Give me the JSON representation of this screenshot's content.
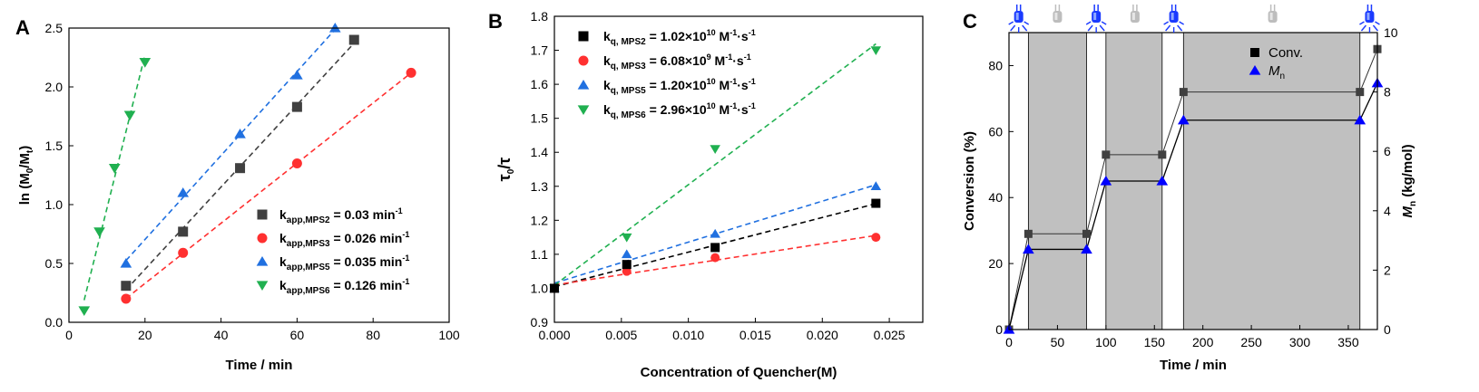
{
  "chart_data": [
    {
      "panel": "A",
      "type": "scatter",
      "xlabel": "Time / min",
      "ylabel": "ln (M0/Mt)",
      "xlim": [
        0,
        100
      ],
      "ylim": [
        0.0,
        2.5
      ],
      "xticks": [
        0,
        20,
        40,
        60,
        80,
        100
      ],
      "yticks": [
        0.0,
        0.5,
        1.0,
        1.5,
        2.0,
        2.5
      ],
      "legend": "bottom-right",
      "fit_lines": "dashed",
      "series": [
        {
          "name": "MPS2",
          "k_value": "0.03",
          "color": "#404040",
          "marker": "square",
          "points": [
            [
              15,
              0.31
            ],
            [
              30,
              0.77
            ],
            [
              45,
              1.31
            ],
            [
              60,
              1.83
            ],
            [
              75,
              2.4
            ]
          ]
        },
        {
          "name": "MPS3",
          "k_value": "0.026",
          "color": "#ff3030",
          "marker": "circle",
          "points": [
            [
              15,
              0.2
            ],
            [
              30,
              0.59
            ],
            [
              60,
              1.35
            ],
            [
              90,
              2.12
            ]
          ]
        },
        {
          "name": "MPS5",
          "k_value": "0.035",
          "color": "#2070e0",
          "marker": "triangle-up",
          "points": [
            [
              15,
              0.5
            ],
            [
              30,
              1.1
            ],
            [
              45,
              1.6
            ],
            [
              60,
              2.1
            ],
            [
              70,
              2.5
            ]
          ]
        },
        {
          "name": "MPS6",
          "k_value": "0.126",
          "color": "#20b050",
          "marker": "triangle-down",
          "points": [
            [
              4,
              0.1
            ],
            [
              8,
              0.77
            ],
            [
              12,
              1.31
            ],
            [
              16,
              1.76
            ],
            [
              20,
              2.21
            ]
          ]
        }
      ],
      "legend_text": {
        "k_prefix": "k",
        "unit_text": "min",
        "unit_exp": "-1"
      }
    },
    {
      "panel": "B",
      "type": "scatter",
      "xlabel": "Concentration of Quencher(M)",
      "ylabel": "τ0/τ",
      "xlim": [
        0.0,
        0.0275
      ],
      "ylim": [
        0.9,
        1.8
      ],
      "xticks": [
        0.0,
        0.005,
        0.01,
        0.015,
        0.02,
        0.025
      ],
      "xtick_labels": [
        "0.000",
        "0.005",
        "0.010",
        "0.015",
        "0.020",
        "0.025"
      ],
      "yticks": [
        0.9,
        1.0,
        1.1,
        1.2,
        1.3,
        1.4,
        1.5,
        1.6,
        1.7,
        1.8
      ],
      "legend": "top-left",
      "fit_lines": "dashed",
      "series": [
        {
          "name": "MPS2",
          "k_mant": "1.02",
          "k_exp": "10",
          "color": "#000000",
          "marker": "square",
          "points": [
            [
              0.0,
              1.0
            ],
            [
              0.0054,
              1.07
            ],
            [
              0.012,
              1.12
            ],
            [
              0.024,
              1.25
            ]
          ]
        },
        {
          "name": "MPS3",
          "k_mant": "6.08",
          "k_exp": "9",
          "color": "#ff3030",
          "marker": "circle",
          "points": [
            [
              0.0,
              1.0
            ],
            [
              0.0054,
              1.05
            ],
            [
              0.012,
              1.09
            ],
            [
              0.024,
              1.15
            ]
          ]
        },
        {
          "name": "MPS5",
          "k_mant": "1.20",
          "k_exp": "10",
          "color": "#2070e0",
          "marker": "triangle-up",
          "points": [
            [
              0.0,
              1.0
            ],
            [
              0.0054,
              1.1
            ],
            [
              0.012,
              1.16
            ],
            [
              0.024,
              1.3
            ]
          ]
        },
        {
          "name": "MPS6",
          "k_mant": "2.96",
          "k_exp": "10",
          "color": "#20b050",
          "marker": "triangle-down",
          "points": [
            [
              0.0,
              1.0
            ],
            [
              0.0054,
              1.15
            ],
            [
              0.012,
              1.41
            ],
            [
              0.024,
              1.7
            ]
          ]
        }
      ],
      "legend_text": {
        "k_prefix": "k",
        "k_sub_prefix": "q, ",
        "times_ten": "×10",
        "unit_main": "M",
        "unit_exp1": "-1",
        "unit_sep": "·s",
        "unit_exp2": "-1"
      }
    },
    {
      "panel": "C",
      "type": "line",
      "xlabel": "Time / min",
      "ylabel_left": "Conversion (%)",
      "ylabel_right_main": "M",
      "ylabel_right_sub": "n",
      "ylabel_right_unit": " (kg/mol)",
      "xlim": [
        0,
        380
      ],
      "ylim_left": [
        0,
        90
      ],
      "ylim_right": [
        0,
        10
      ],
      "xticks": [
        0,
        50,
        100,
        150,
        200,
        250,
        300,
        350
      ],
      "yticks_left": [
        0,
        20,
        40,
        60,
        80
      ],
      "yticks_right": [
        0,
        2,
        4,
        6,
        8,
        10
      ],
      "legend": "top-right",
      "dark_periods": [
        [
          20,
          80
        ],
        [
          100,
          158
        ],
        [
          180,
          362
        ]
      ],
      "light_icons": [
        {
          "x": 10,
          "state": "on"
        },
        {
          "x": 50,
          "state": "off"
        },
        {
          "x": 90,
          "state": "on"
        },
        {
          "x": 130,
          "state": "off"
        },
        {
          "x": 170,
          "state": "on"
        },
        {
          "x": 272,
          "state": "off"
        },
        {
          "x": 372,
          "state": "on"
        }
      ],
      "series": [
        {
          "name": "Conv.",
          "axis": "left",
          "color": "#000000",
          "marker": "square",
          "points": [
            [
              0,
              0
            ],
            [
              20,
              29
            ],
            [
              80,
              29
            ],
            [
              100,
              53
            ],
            [
              158,
              53
            ],
            [
              180,
              72
            ],
            [
              362,
              72
            ],
            [
              380,
              85
            ]
          ]
        },
        {
          "name_main": "M",
          "name_sub": "n",
          "axis": "right",
          "color": "#0000ff",
          "marker": "triangle-up",
          "points": [
            [
              0,
              0
            ],
            [
              20,
              2.7
            ],
            [
              80,
              2.7
            ],
            [
              100,
              5.0
            ],
            [
              158,
              5.0
            ],
            [
              180,
              7.05
            ],
            [
              362,
              7.05
            ],
            [
              380,
              8.3
            ]
          ]
        }
      ]
    }
  ]
}
